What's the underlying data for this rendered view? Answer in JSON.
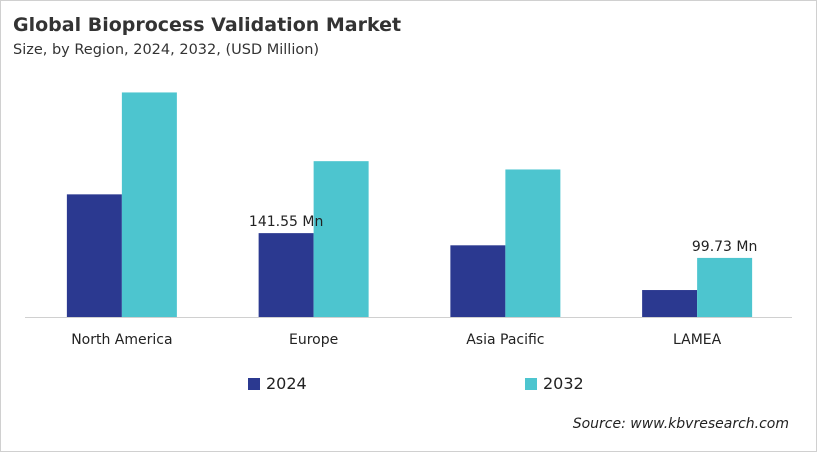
{
  "chart_data": {
    "type": "bar",
    "title": "Global Bioprocess Validation Market",
    "subtitle": "Size, by Region, 2024, 2032, (USD Million)",
    "categories": [
      "North America",
      "Europe",
      "Asia Pacific",
      "LAMEA"
    ],
    "series": [
      {
        "name": "2024",
        "color": "#2b3990",
        "values": [
          207,
          141.55,
          121,
          45.5
        ]
      },
      {
        "name": "2032",
        "color": "#4dc5cf",
        "values": [
          379,
          263,
          249,
          99.73
        ]
      }
    ],
    "data_labels": [
      {
        "series": 0,
        "category": 1,
        "text": "141.55 Mn"
      },
      {
        "series": 1,
        "category": 3,
        "text": "99.73 Mn"
      }
    ],
    "ylim": [
      0,
      400
    ],
    "grid": false,
    "y_axis_shown": false,
    "legend": "bottom",
    "source": "Source: www.kbvresearch.com"
  }
}
